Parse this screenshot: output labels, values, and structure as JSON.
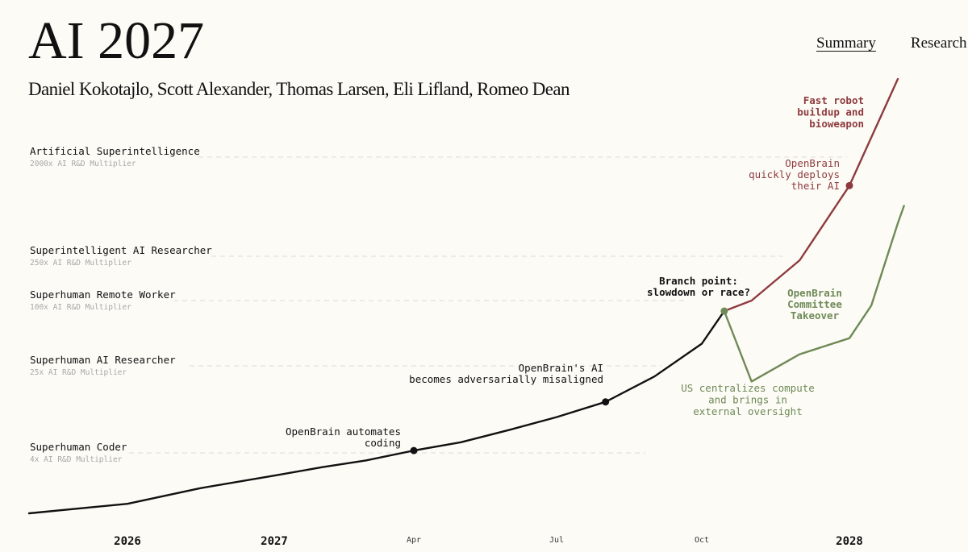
{
  "header": {
    "title": "AI 2027",
    "authors": "Daniel Kokotajlo, Scott Alexander, Thomas Larsen, Eli Lifland, Romeo Dean"
  },
  "nav": {
    "items": [
      {
        "label": "Summary",
        "active": true
      },
      {
        "label": "Research",
        "active": false
      }
    ]
  },
  "colors": {
    "background": "#fcfbf6",
    "main_line": "#111111",
    "race": "#8e3b3e",
    "slowdown": "#6f8a56",
    "gridline": "#dcdcd6",
    "sublabel": "#a8a8a8"
  },
  "chart_data": {
    "type": "line",
    "x_axis": {
      "ticks": [
        {
          "label": "2026",
          "date": "2026-01",
          "major": true
        },
        {
          "label": "2027",
          "date": "2027-01",
          "major": true
        },
        {
          "label": "Apr",
          "date": "2027-04",
          "major": false
        },
        {
          "label": "Jul",
          "date": "2027-07",
          "major": false
        },
        {
          "label": "Oct",
          "date": "2027-10",
          "major": false
        },
        {
          "label": "2028",
          "date": "2028-01",
          "major": true
        }
      ]
    },
    "y_axis": {
      "scale": "log",
      "unit": "AI R&D Multiplier",
      "milestones": [
        {
          "name": "Superhuman Coder",
          "sublabel": "4x AI R&D Multiplier",
          "value": 4
        },
        {
          "name": "Superhuman AI Researcher",
          "sublabel": "25x AI R&D Multiplier",
          "value": 25
        },
        {
          "name": "Superhuman Remote Worker",
          "sublabel": "100x AI R&D Multiplier",
          "value": 100
        },
        {
          "name": "Superintelligent AI Researcher",
          "sublabel": "250x AI R&D Multiplier",
          "value": 250
        },
        {
          "name": "Artificial Superintelligence",
          "sublabel": "2000x AI R&D Multiplier",
          "value": 2000
        }
      ]
    },
    "series": [
      {
        "key": "main",
        "color": "#111111",
        "points": [
          {
            "date": "2025-06",
            "value": 1.55
          },
          {
            "date": "2026-01",
            "value": 1.8
          },
          {
            "date": "2026-07",
            "value": 2.3
          },
          {
            "date": "2027-01",
            "value": 2.8
          },
          {
            "date": "2027-02",
            "value": 3.2
          },
          {
            "date": "2027-03",
            "value": 3.55
          },
          {
            "date": "2027-04",
            "value": 4.2
          },
          {
            "date": "2027-05",
            "value": 5.0
          },
          {
            "date": "2027-06",
            "value": 6.5
          },
          {
            "date": "2027-07",
            "value": 8.5
          },
          {
            "date": "2027-08",
            "value": 11.7
          },
          {
            "date": "2027-09",
            "value": 20
          },
          {
            "date": "2027-10",
            "value": 40
          },
          {
            "date": "2027-10-15",
            "value": 80
          }
        ]
      },
      {
        "key": "race",
        "color": "#8e3b3e",
        "points": [
          {
            "date": "2027-10-15",
            "value": 80
          },
          {
            "date": "2027-11",
            "value": 100
          },
          {
            "date": "2027-12",
            "value": 230
          },
          {
            "date": "2028-01",
            "value": 1100
          },
          {
            "date": "2028-02",
            "value": 6500
          }
        ]
      },
      {
        "key": "slowdown",
        "color": "#6f8a56",
        "points": [
          {
            "date": "2027-10-15",
            "value": 80
          },
          {
            "date": "2027-11",
            "value": 18
          },
          {
            "date": "2027-12",
            "value": 32
          },
          {
            "date": "2028-01",
            "value": 45
          },
          {
            "date": "2028-01-15",
            "value": 90
          },
          {
            "date": "2028-02",
            "value": 500
          },
          {
            "date": "2028-02-05",
            "value": 720
          }
        ]
      }
    ],
    "markers": [
      {
        "date": "2027-04",
        "value": 4.2,
        "color": "#111111"
      },
      {
        "date": "2027-08",
        "value": 11.7,
        "color": "#111111"
      },
      {
        "date": "2027-10-15",
        "value": 80,
        "color": "#6f8a56"
      },
      {
        "date": "2028-01",
        "value": 1100,
        "color": "#8e3b3e"
      }
    ],
    "annotations": [
      {
        "lines": [
          "OpenBrain automates",
          "coding"
        ],
        "color": "#111111",
        "bold": false
      },
      {
        "lines": [
          "OpenBrain's AI",
          "becomes adversarially misaligned"
        ],
        "color": "#111111",
        "bold": false
      },
      {
        "lines": [
          "Branch point:",
          "slowdown or race?"
        ],
        "color": "#111111",
        "bold": true
      },
      {
        "lines": [
          "Fast robot",
          "buildup and",
          "bioweapon"
        ],
        "color": "#8e3b3e",
        "bold": true
      },
      {
        "lines": [
          "OpenBrain",
          "quickly deploys",
          "their AI"
        ],
        "color": "#8e3b3e",
        "bold": false
      },
      {
        "lines": [
          "OpenBrain",
          "Committee",
          "Takeover"
        ],
        "color": "#6f8a56",
        "bold": true
      },
      {
        "lines": [
          "US centralizes compute",
          "and brings in",
          "external oversight"
        ],
        "color": "#6f8a56",
        "bold": false
      }
    ]
  }
}
